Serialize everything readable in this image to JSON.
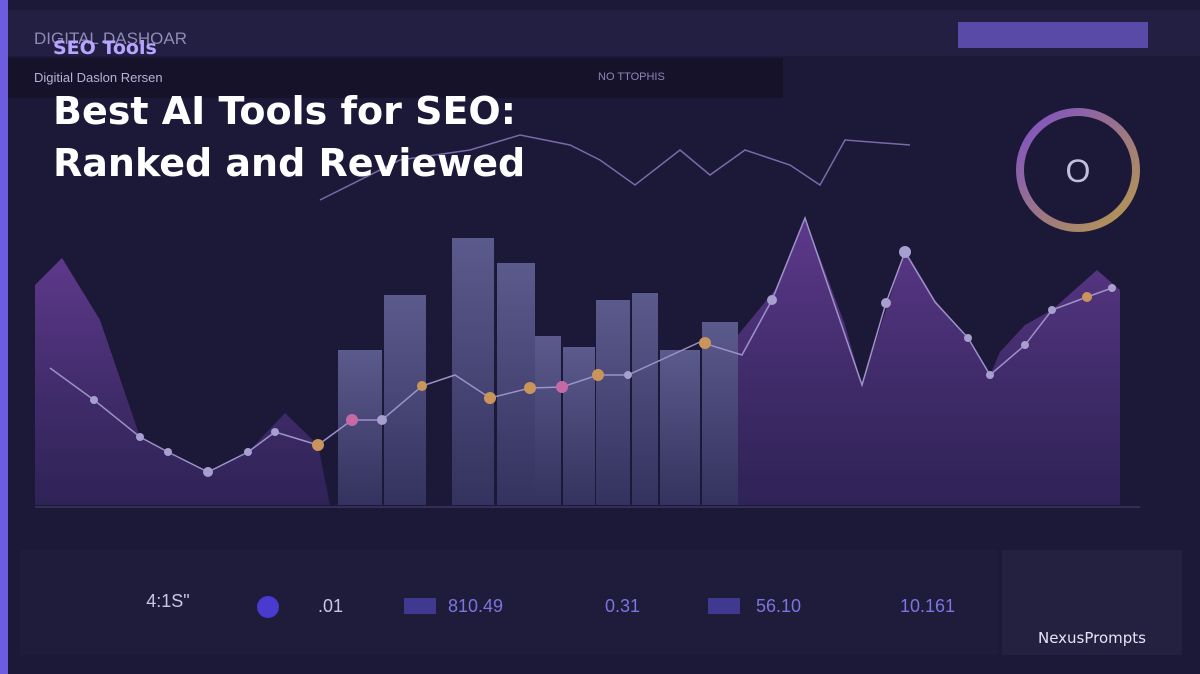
{
  "background": {
    "dashboard_title": "DIGITAL DASHOAR",
    "panel_label": "Digitial Daslon Rersen",
    "filter_label": "NO TTOPHIS",
    "stats": [
      ".01",
      "810.49",
      "0.31",
      "56.10",
      "10.161",
      "4:1S\""
    ]
  },
  "category": "SEO Tools",
  "title_lines": [
    "Best AI Tools for SEO:",
    "Ranked and Reviewed"
  ],
  "watermark": "NexusPrompts"
}
